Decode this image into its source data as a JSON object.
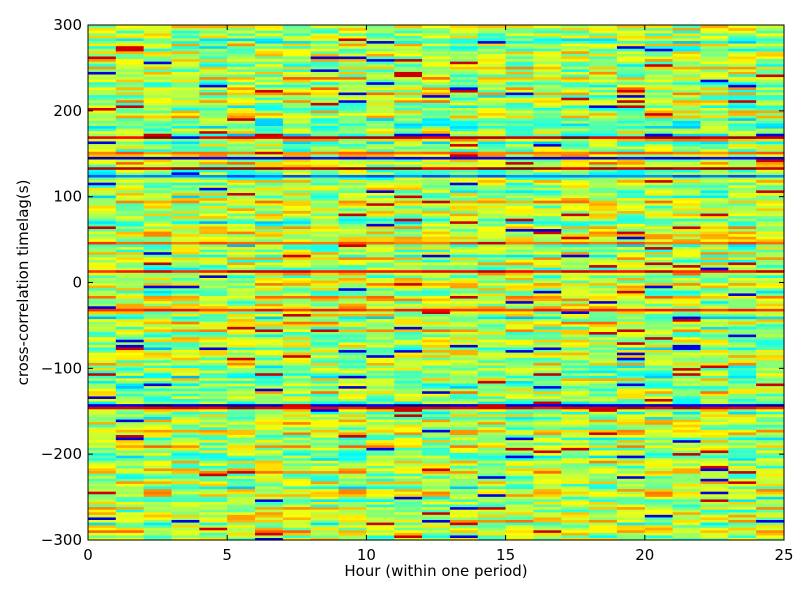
{
  "chart_data": {
    "type": "heatmap",
    "title": "",
    "xlabel": "Hour (within one period)",
    "ylabel": "cross-correlation timelag(s)",
    "xlim": [
      0,
      25
    ],
    "ylim": [
      -300,
      300
    ],
    "x_ticks": [
      0,
      5,
      10,
      15,
      20,
      25
    ],
    "y_ticks": [
      -300,
      -200,
      -100,
      0,
      100,
      200,
      300
    ],
    "x_tick_labels": [
      "0",
      "5",
      "10",
      "15",
      "20",
      "25"
    ],
    "y_tick_labels": [
      "−300",
      "−200",
      "−100",
      "0",
      "100",
      "200",
      "300"
    ],
    "colormap": "jet",
    "value_range": [
      -1,
      1
    ],
    "grid": false,
    "columns": 25,
    "row_resolution_s": 3,
    "notable_rows": [
      {
        "lag": 168,
        "value": 0.92
      },
      {
        "lag": 149,
        "value": 0.55
      },
      {
        "lag": 143,
        "value": -0.85
      },
      {
        "lag": 131,
        "value": 0.95
      },
      {
        "lag": 123,
        "value": -0.55
      },
      {
        "lag": 44,
        "value": 0.6
      },
      {
        "lag": 11,
        "value": 0.8
      },
      {
        "lag": -33,
        "value": 0.7
      },
      {
        "lag": -143,
        "value": -0.9
      },
      {
        "lag": -147,
        "value": 0.85
      }
    ]
  }
}
